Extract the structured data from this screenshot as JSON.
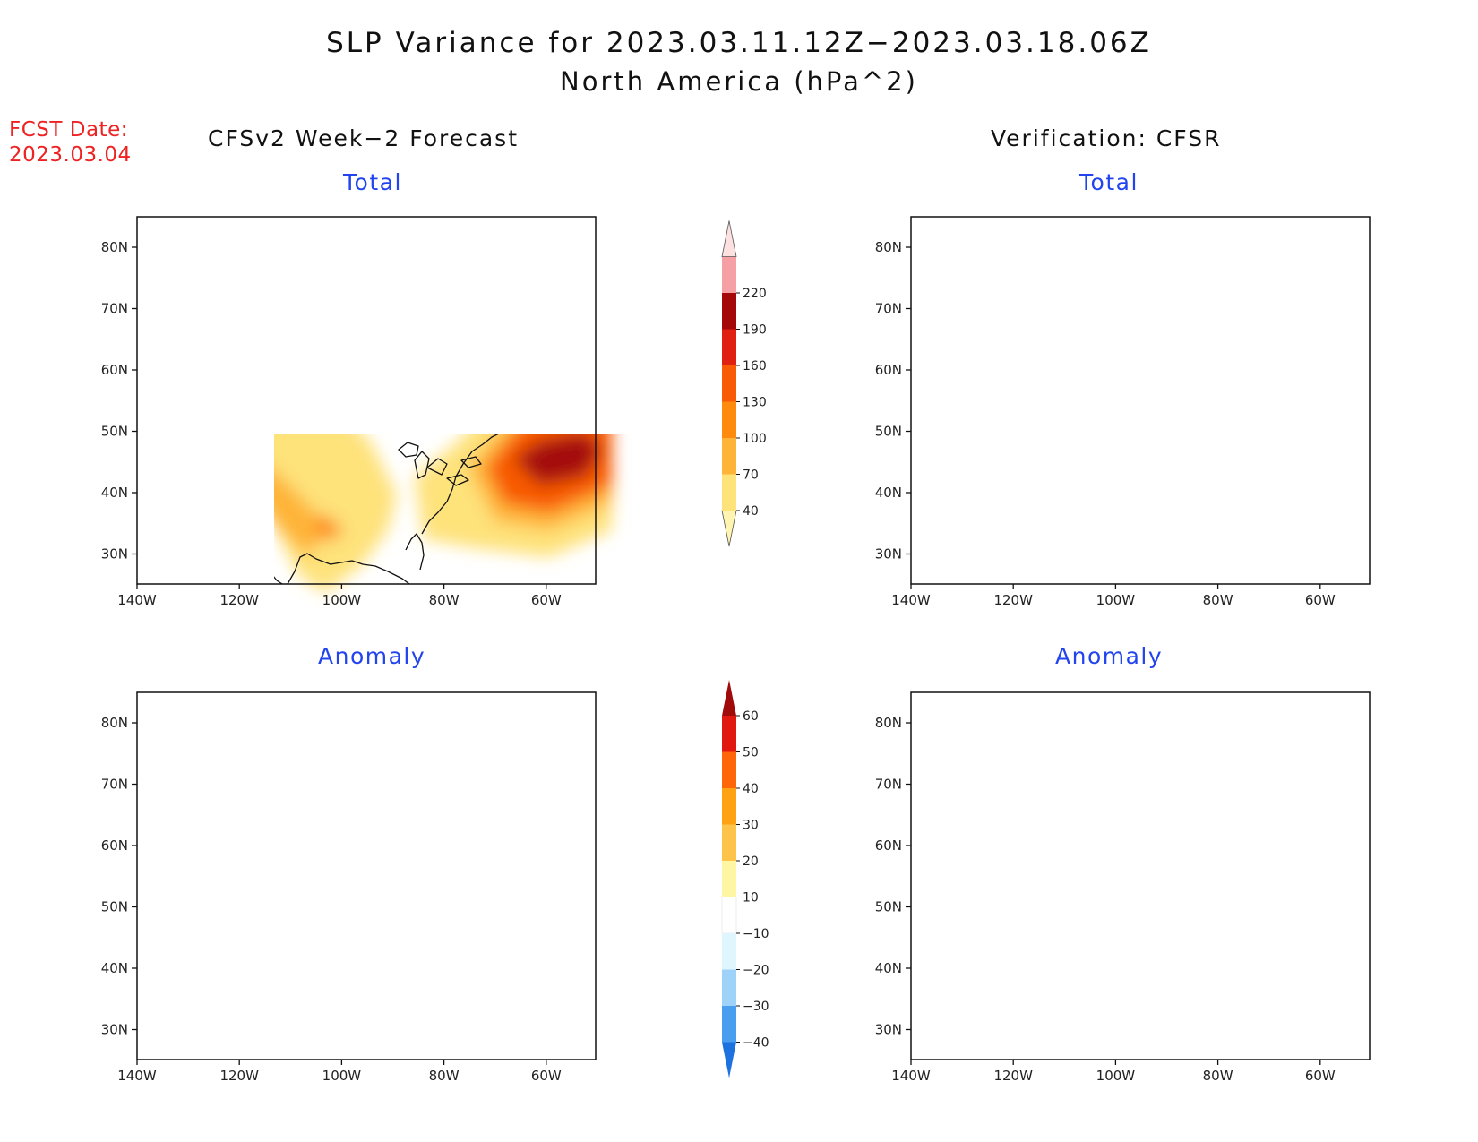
{
  "header": {
    "title": "SLP Variance for 2023.03.11.12Z−2023.03.18.06Z",
    "subtitle": "North America (hPa^2)",
    "fcst_line1": "FCST Date:",
    "fcst_line2": "2023.03.04"
  },
  "columns": {
    "left_title": "CFSv2 Week−2 Forecast",
    "right_title": "Verification: CFSR"
  },
  "panels": {
    "tl": "Total",
    "tr": "Total",
    "bl": "Anomaly",
    "br": "Anomaly"
  },
  "axes": {
    "lat": [
      "80N",
      "70N",
      "60N",
      "50N",
      "40N",
      "30N"
    ],
    "lon": [
      "140W",
      "120W",
      "100W",
      "80W",
      "60W"
    ]
  },
  "legends": {
    "total": {
      "levels": [
        "40",
        "70",
        "100",
        "130",
        "160",
        "190",
        "220"
      ],
      "colors": [
        "#fff5b0",
        "#fee27a",
        "#feb438",
        "#fe8a0e",
        "#f85a06",
        "#e02010",
        "#a40808",
        "#f4a0a4",
        "#fde0e0"
      ]
    },
    "anomaly": {
      "levels": [
        "60",
        "50",
        "40",
        "30",
        "20",
        "10",
        "−10",
        "−20",
        "−30",
        "−40"
      ],
      "colors": [
        "#a00a0a",
        "#e01810",
        "#fe6608",
        "#fea214",
        "#fec44a",
        "#fff6a4",
        "#ffffff",
        "#e0f6fe",
        "#9ed2f8",
        "#4a9ef0",
        "#1e72e0"
      ]
    }
  },
  "colors": {
    "fcst": "#ee2222",
    "panel_title": "#2244ee",
    "coast": "#111111"
  },
  "icons": [
    "map-coastline"
  ]
}
